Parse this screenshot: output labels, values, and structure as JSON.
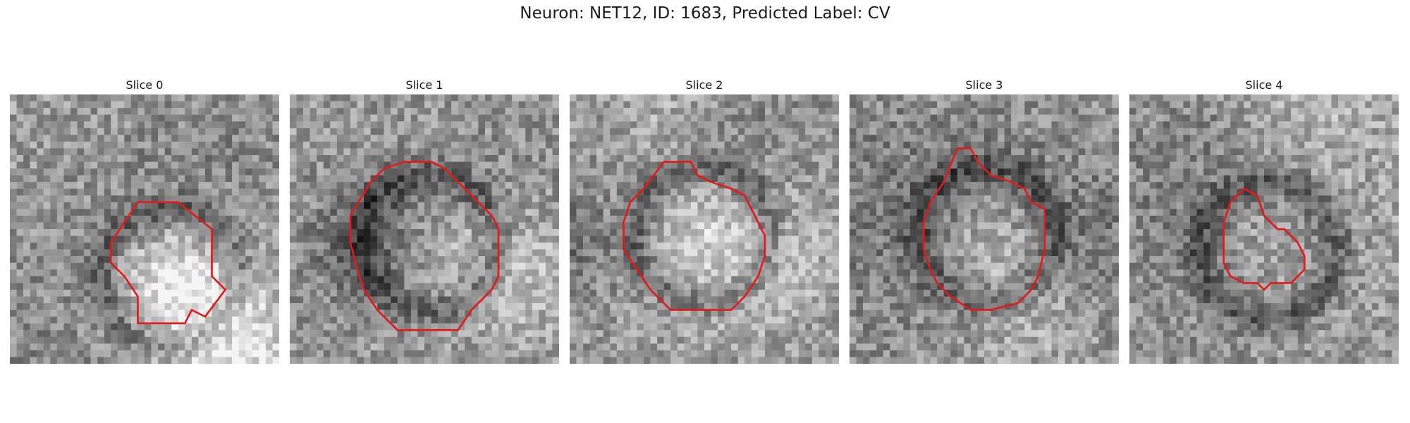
{
  "figure": {
    "title": "Neuron: NET12, ID: 1683, Predicted Label: CV"
  },
  "contour_color": "#e31a1c",
  "panels": [
    {
      "title": "Slice 0",
      "contour": [
        [
          19,
          16
        ],
        [
          25,
          16
        ],
        [
          30,
          20
        ],
        [
          30,
          27
        ],
        [
          32,
          29
        ],
        [
          29,
          33
        ],
        [
          27,
          32
        ],
        [
          26,
          34
        ],
        [
          19,
          34
        ],
        [
          19,
          30
        ],
        [
          17,
          27
        ],
        [
          15,
          25
        ],
        [
          15,
          22
        ]
      ]
    },
    {
      "title": "Slice 1",
      "contour": [
        [
          17,
          10
        ],
        [
          21,
          10
        ],
        [
          23,
          11
        ],
        [
          26,
          14
        ],
        [
          28,
          16
        ],
        [
          30,
          18
        ],
        [
          31,
          20
        ],
        [
          31,
          27
        ],
        [
          30,
          29
        ],
        [
          27,
          32
        ],
        [
          25,
          35
        ],
        [
          16,
          35
        ],
        [
          13,
          32
        ],
        [
          11,
          29
        ],
        [
          10,
          26
        ],
        [
          9,
          22
        ],
        [
          9,
          18
        ],
        [
          12,
          13
        ],
        [
          14,
          11
        ]
      ]
    },
    {
      "title": "Slice 2",
      "contour": [
        [
          14,
          10
        ],
        [
          18,
          10
        ],
        [
          19,
          12
        ],
        [
          21,
          13
        ],
        [
          24,
          14
        ],
        [
          26,
          15
        ],
        [
          27,
          17
        ],
        [
          28,
          19
        ],
        [
          29,
          21
        ],
        [
          29,
          24
        ],
        [
          28,
          27
        ],
        [
          26,
          30
        ],
        [
          24,
          32
        ],
        [
          15,
          32
        ],
        [
          12,
          29
        ],
        [
          10,
          26
        ],
        [
          8,
          23
        ],
        [
          8,
          19
        ],
        [
          9,
          16
        ],
        [
          11,
          14
        ]
      ]
    },
    {
      "title": "Slice 3",
      "contour": [
        [
          16,
          8
        ],
        [
          18,
          8
        ],
        [
          19,
          10
        ],
        [
          21,
          12
        ],
        [
          24,
          13
        ],
        [
          26,
          14
        ],
        [
          27,
          16
        ],
        [
          29,
          17
        ],
        [
          29,
          23
        ],
        [
          28,
          27
        ],
        [
          27,
          29
        ],
        [
          25,
          31
        ],
        [
          21,
          32
        ],
        [
          18,
          32
        ],
        [
          15,
          30
        ],
        [
          13,
          28
        ],
        [
          12,
          26
        ],
        [
          11,
          23
        ],
        [
          11,
          19
        ],
        [
          12,
          16
        ],
        [
          14,
          13
        ]
      ]
    },
    {
      "title": "Slice 4",
      "contour": [
        [
          17,
          14
        ],
        [
          19,
          15
        ],
        [
          20,
          18
        ],
        [
          21,
          19
        ],
        [
          22,
          20
        ],
        [
          23,
          20
        ],
        [
          24,
          21
        ],
        [
          25,
          22
        ],
        [
          26,
          24
        ],
        [
          26,
          26
        ],
        [
          24,
          28
        ],
        [
          21,
          28
        ],
        [
          20,
          29
        ],
        [
          19,
          28
        ],
        [
          17,
          28
        ],
        [
          15,
          27
        ],
        [
          14,
          25
        ],
        [
          14,
          19
        ],
        [
          15,
          16
        ]
      ]
    }
  ]
}
